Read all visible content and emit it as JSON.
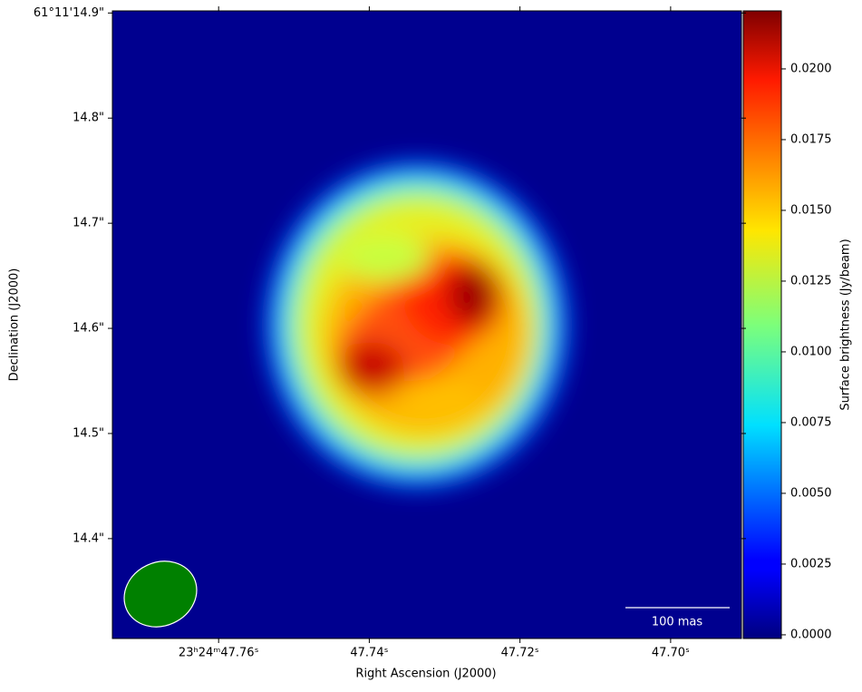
{
  "chart_data": {
    "type": "image",
    "xlabel": "Right Ascension (J2000)",
    "ylabel": "Declination (J2000)",
    "xlim": [
      47.7741,
      47.6906
    ],
    "xticks": [
      {
        "value": 47.76,
        "label": "23ʰ24ᵐ47.76ˢ"
      },
      {
        "value": 47.74,
        "label": "47.74ˢ"
      },
      {
        "value": 47.72,
        "label": "47.72ˢ"
      },
      {
        "value": 47.7,
        "label": "47.70ˢ"
      }
    ],
    "ylim": [
      14.305,
      14.902
    ],
    "yticks": [
      {
        "value": 14.9,
        "label": "61°11'14.9\""
      },
      {
        "value": 14.8,
        "label": "14.8\""
      },
      {
        "value": 14.7,
        "label": "14.7\""
      },
      {
        "value": 14.6,
        "label": "14.6\""
      },
      {
        "value": 14.5,
        "label": "14.5\""
      },
      {
        "value": 14.4,
        "label": "14.4\""
      }
    ],
    "colorbar": {
      "label": "Surface brightness (Jy/beam)",
      "colormap": "jet",
      "lim": [
        -0.00013,
        0.02205
      ],
      "ticks": [
        {
          "value": 0,
          "label": "0.0000"
        },
        {
          "value": 0.0025,
          "label": "0.0025"
        },
        {
          "value": 0.005,
          "label": "0.0050"
        },
        {
          "value": 0.0075,
          "label": "0.0075"
        },
        {
          "value": 0.01,
          "label": "0.0100"
        },
        {
          "value": 0.0125,
          "label": "0.0125"
        },
        {
          "value": 0.015,
          "label": "0.0150"
        },
        {
          "value": 0.0175,
          "label": "0.0175"
        },
        {
          "value": 0.02,
          "label": "0.0200"
        }
      ]
    },
    "scalebar_label": "100 mas"
  }
}
